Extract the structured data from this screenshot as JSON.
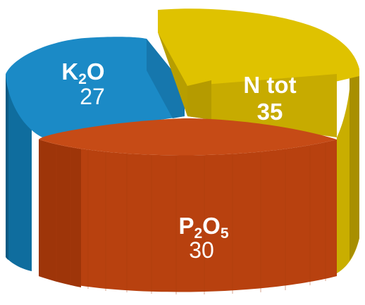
{
  "chart_data": {
    "type": "pie",
    "style": "3d-exploded",
    "slices": [
      {
        "label_main": "K",
        "label_sub": "2",
        "label_tail": "O",
        "value": 27,
        "value_text": "27",
        "color": "#1b8ac6"
      },
      {
        "label_main": "N tot",
        "label_sub": "",
        "label_tail": "",
        "value": 35,
        "value_text": "35",
        "color": "#dfc200"
      },
      {
        "label_main": "P",
        "label_sub": "2",
        "label_tail": "O",
        "label_sub2": "5",
        "value": 30,
        "value_text": "30",
        "color": "#c64b16"
      }
    ]
  }
}
